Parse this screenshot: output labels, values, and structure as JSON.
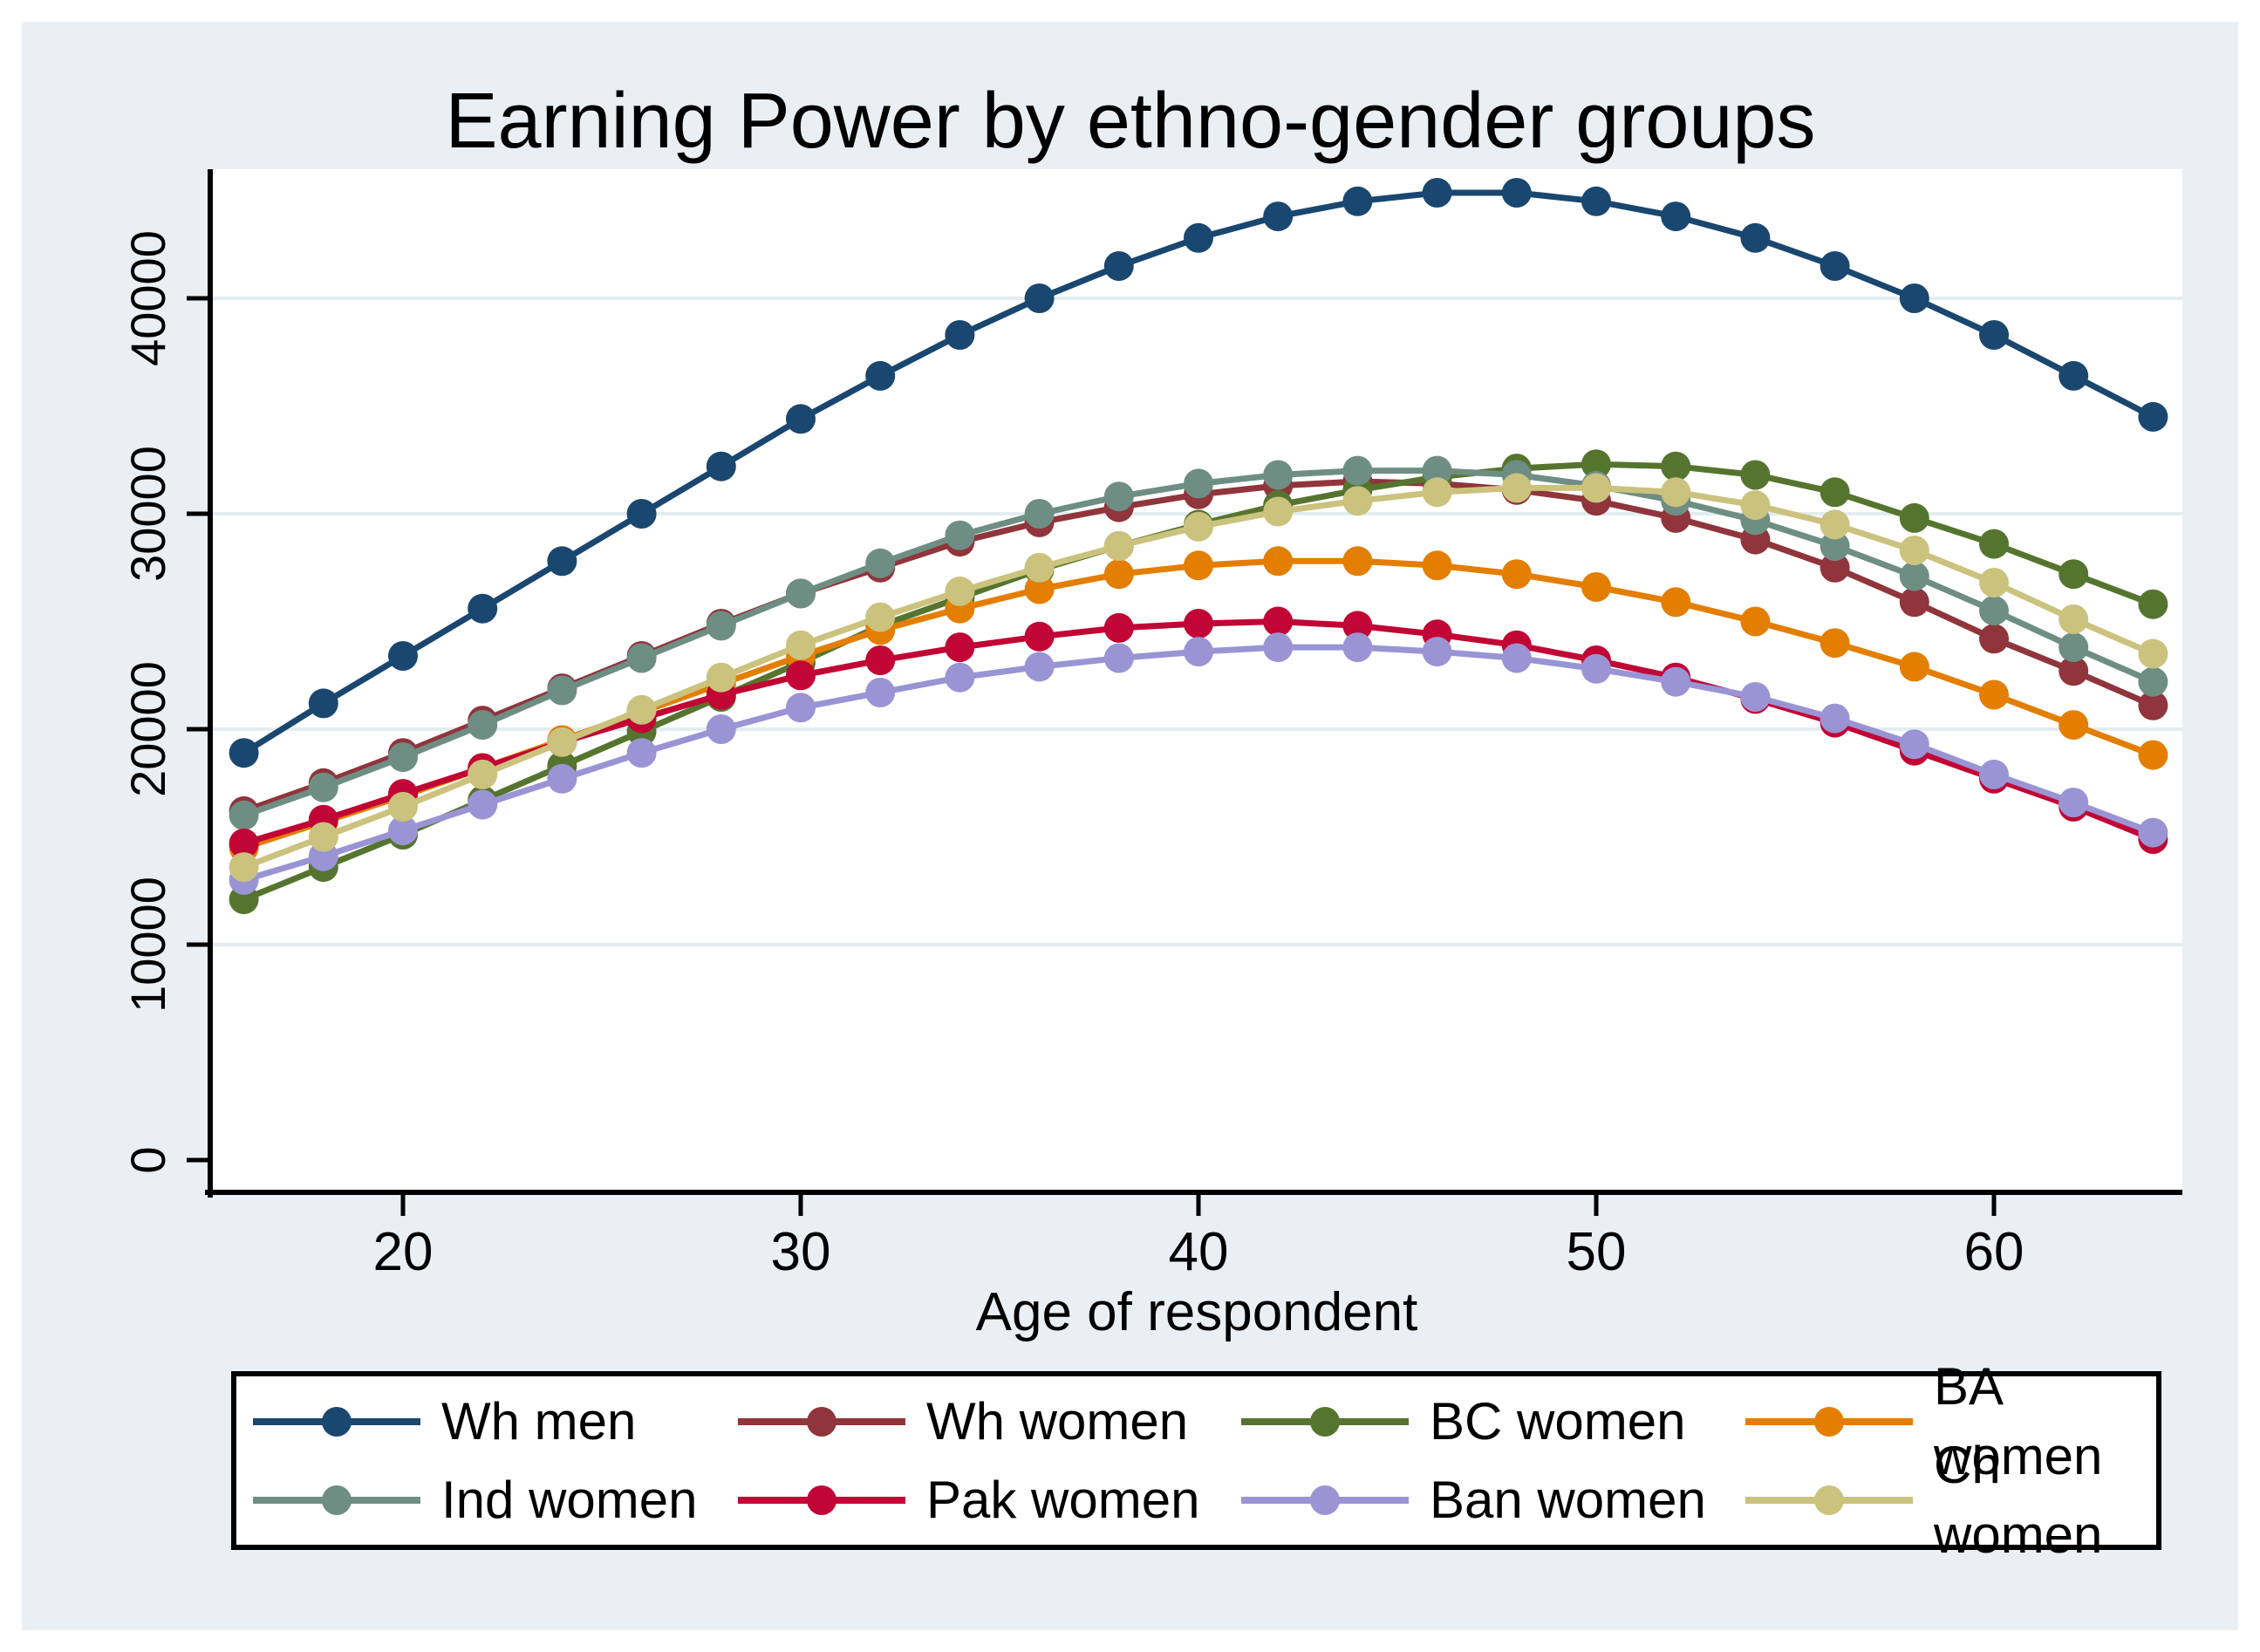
{
  "title": "Earning Power by ethno-gender groups",
  "colors": {
    "page_background": "#ffffff",
    "graph_region": "#e9eff2",
    "plot_region": "#ffffff",
    "gridline": "#e3edf0",
    "axis": "#000000"
  },
  "chart_data": {
    "type": "line",
    "title": "Earning Power by ethno-gender groups",
    "xlabel": "Age of respondent",
    "ylabel": "",
    "x_ticks": [
      20,
      30,
      40,
      50,
      60
    ],
    "x_tick_labels": [
      "20",
      "30",
      "40",
      "50",
      "60"
    ],
    "y_ticks": [
      40000,
      30000,
      20000,
      10000,
      0
    ],
    "y_tick_labels": [
      "40000",
      "30000",
      "20000",
      "10000",
      "0"
    ],
    "xlim": [
      15.2,
      64.7
    ],
    "ylim": [
      0,
      45800
    ],
    "grid": "horizontal gridlines at labeled y ticks, light blue-gray",
    "legend_position": "bottom, boxed, 2 rows x 4 columns",
    "marker": "filled circle on every data point",
    "x": [
      16,
      18,
      20,
      22,
      24,
      26,
      28,
      30,
      32,
      34,
      36,
      38,
      40,
      42,
      44,
      46,
      48,
      50,
      52,
      54,
      56,
      58,
      60,
      62,
      64
    ],
    "series": [
      {
        "name": "Wh men",
        "color": "#1a476f",
        "values": [
          18900,
          21200,
          23400,
          25600,
          27800,
          30000,
          32200,
          34400,
          36400,
          38300,
          40000,
          41500,
          42800,
          43800,
          44500,
          44900,
          44900,
          44500,
          43800,
          42800,
          41500,
          40000,
          38300,
          36400,
          34500
        ]
      },
      {
        "name": "Wh women",
        "color": "#90353b",
        "values": [
          16200,
          17500,
          18900,
          20400,
          21900,
          23400,
          24900,
          26300,
          27500,
          28700,
          29600,
          30300,
          30900,
          31300,
          31500,
          31400,
          31100,
          30600,
          29800,
          28800,
          27500,
          25900,
          24200,
          22700,
          21100
        ]
      },
      {
        "name": "BC women",
        "color": "#55752f",
        "values": [
          12100,
          13600,
          15100,
          16700,
          18300,
          19900,
          21500,
          23100,
          24800,
          26100,
          27400,
          28500,
          29500,
          30400,
          31100,
          31700,
          32100,
          32300,
          32200,
          31800,
          31000,
          29800,
          28600,
          27200,
          25800
        ]
      },
      {
        "name": "BA women",
        "color": "#e37e00",
        "values": [
          14500,
          15700,
          16900,
          18200,
          19500,
          20800,
          22100,
          23400,
          24600,
          25600,
          26500,
          27200,
          27600,
          27800,
          27800,
          27600,
          27200,
          26600,
          25900,
          25000,
          24000,
          22900,
          21600,
          20200,
          18800
        ]
      },
      {
        "name": "Ind women",
        "color": "#6e8e84",
        "values": [
          16000,
          17300,
          18700,
          20200,
          21800,
          23300,
          24800,
          26300,
          27700,
          29000,
          30000,
          30800,
          31400,
          31800,
          32000,
          32000,
          31800,
          31300,
          30600,
          29700,
          28500,
          27100,
          25500,
          23800,
          22200
        ]
      },
      {
        "name": "Pak women",
        "color": "#c10534",
        "values": [
          14700,
          15800,
          17000,
          18200,
          19400,
          20500,
          21600,
          22500,
          23200,
          23800,
          24300,
          24700,
          24900,
          25000,
          24800,
          24400,
          23900,
          23200,
          22400,
          21400,
          20300,
          19000,
          17700,
          16400,
          14900
        ]
      },
      {
        "name": "Ban women",
        "color": "#9a94d5",
        "values": [
          13000,
          14100,
          15300,
          16500,
          17700,
          18900,
          20000,
          21000,
          21700,
          22400,
          22900,
          23300,
          23600,
          23800,
          23800,
          23600,
          23300,
          22800,
          22200,
          21500,
          20500,
          19300,
          17900,
          16600,
          15200
        ]
      },
      {
        "name": "Ch women",
        "color": "#cbc27e",
        "values": [
          13600,
          15000,
          16400,
          17900,
          19400,
          20900,
          22400,
          23900,
          25200,
          26400,
          27500,
          28500,
          29400,
          30100,
          30600,
          31000,
          31200,
          31200,
          31000,
          30400,
          29500,
          28300,
          26800,
          25100,
          23500
        ]
      }
    ]
  },
  "legend": {
    "rows": [
      [
        "Wh men",
        "Wh women",
        "BC women",
        "BA women"
      ],
      [
        "Ind women",
        "Pak women",
        "Ban women",
        "Ch women"
      ]
    ]
  }
}
